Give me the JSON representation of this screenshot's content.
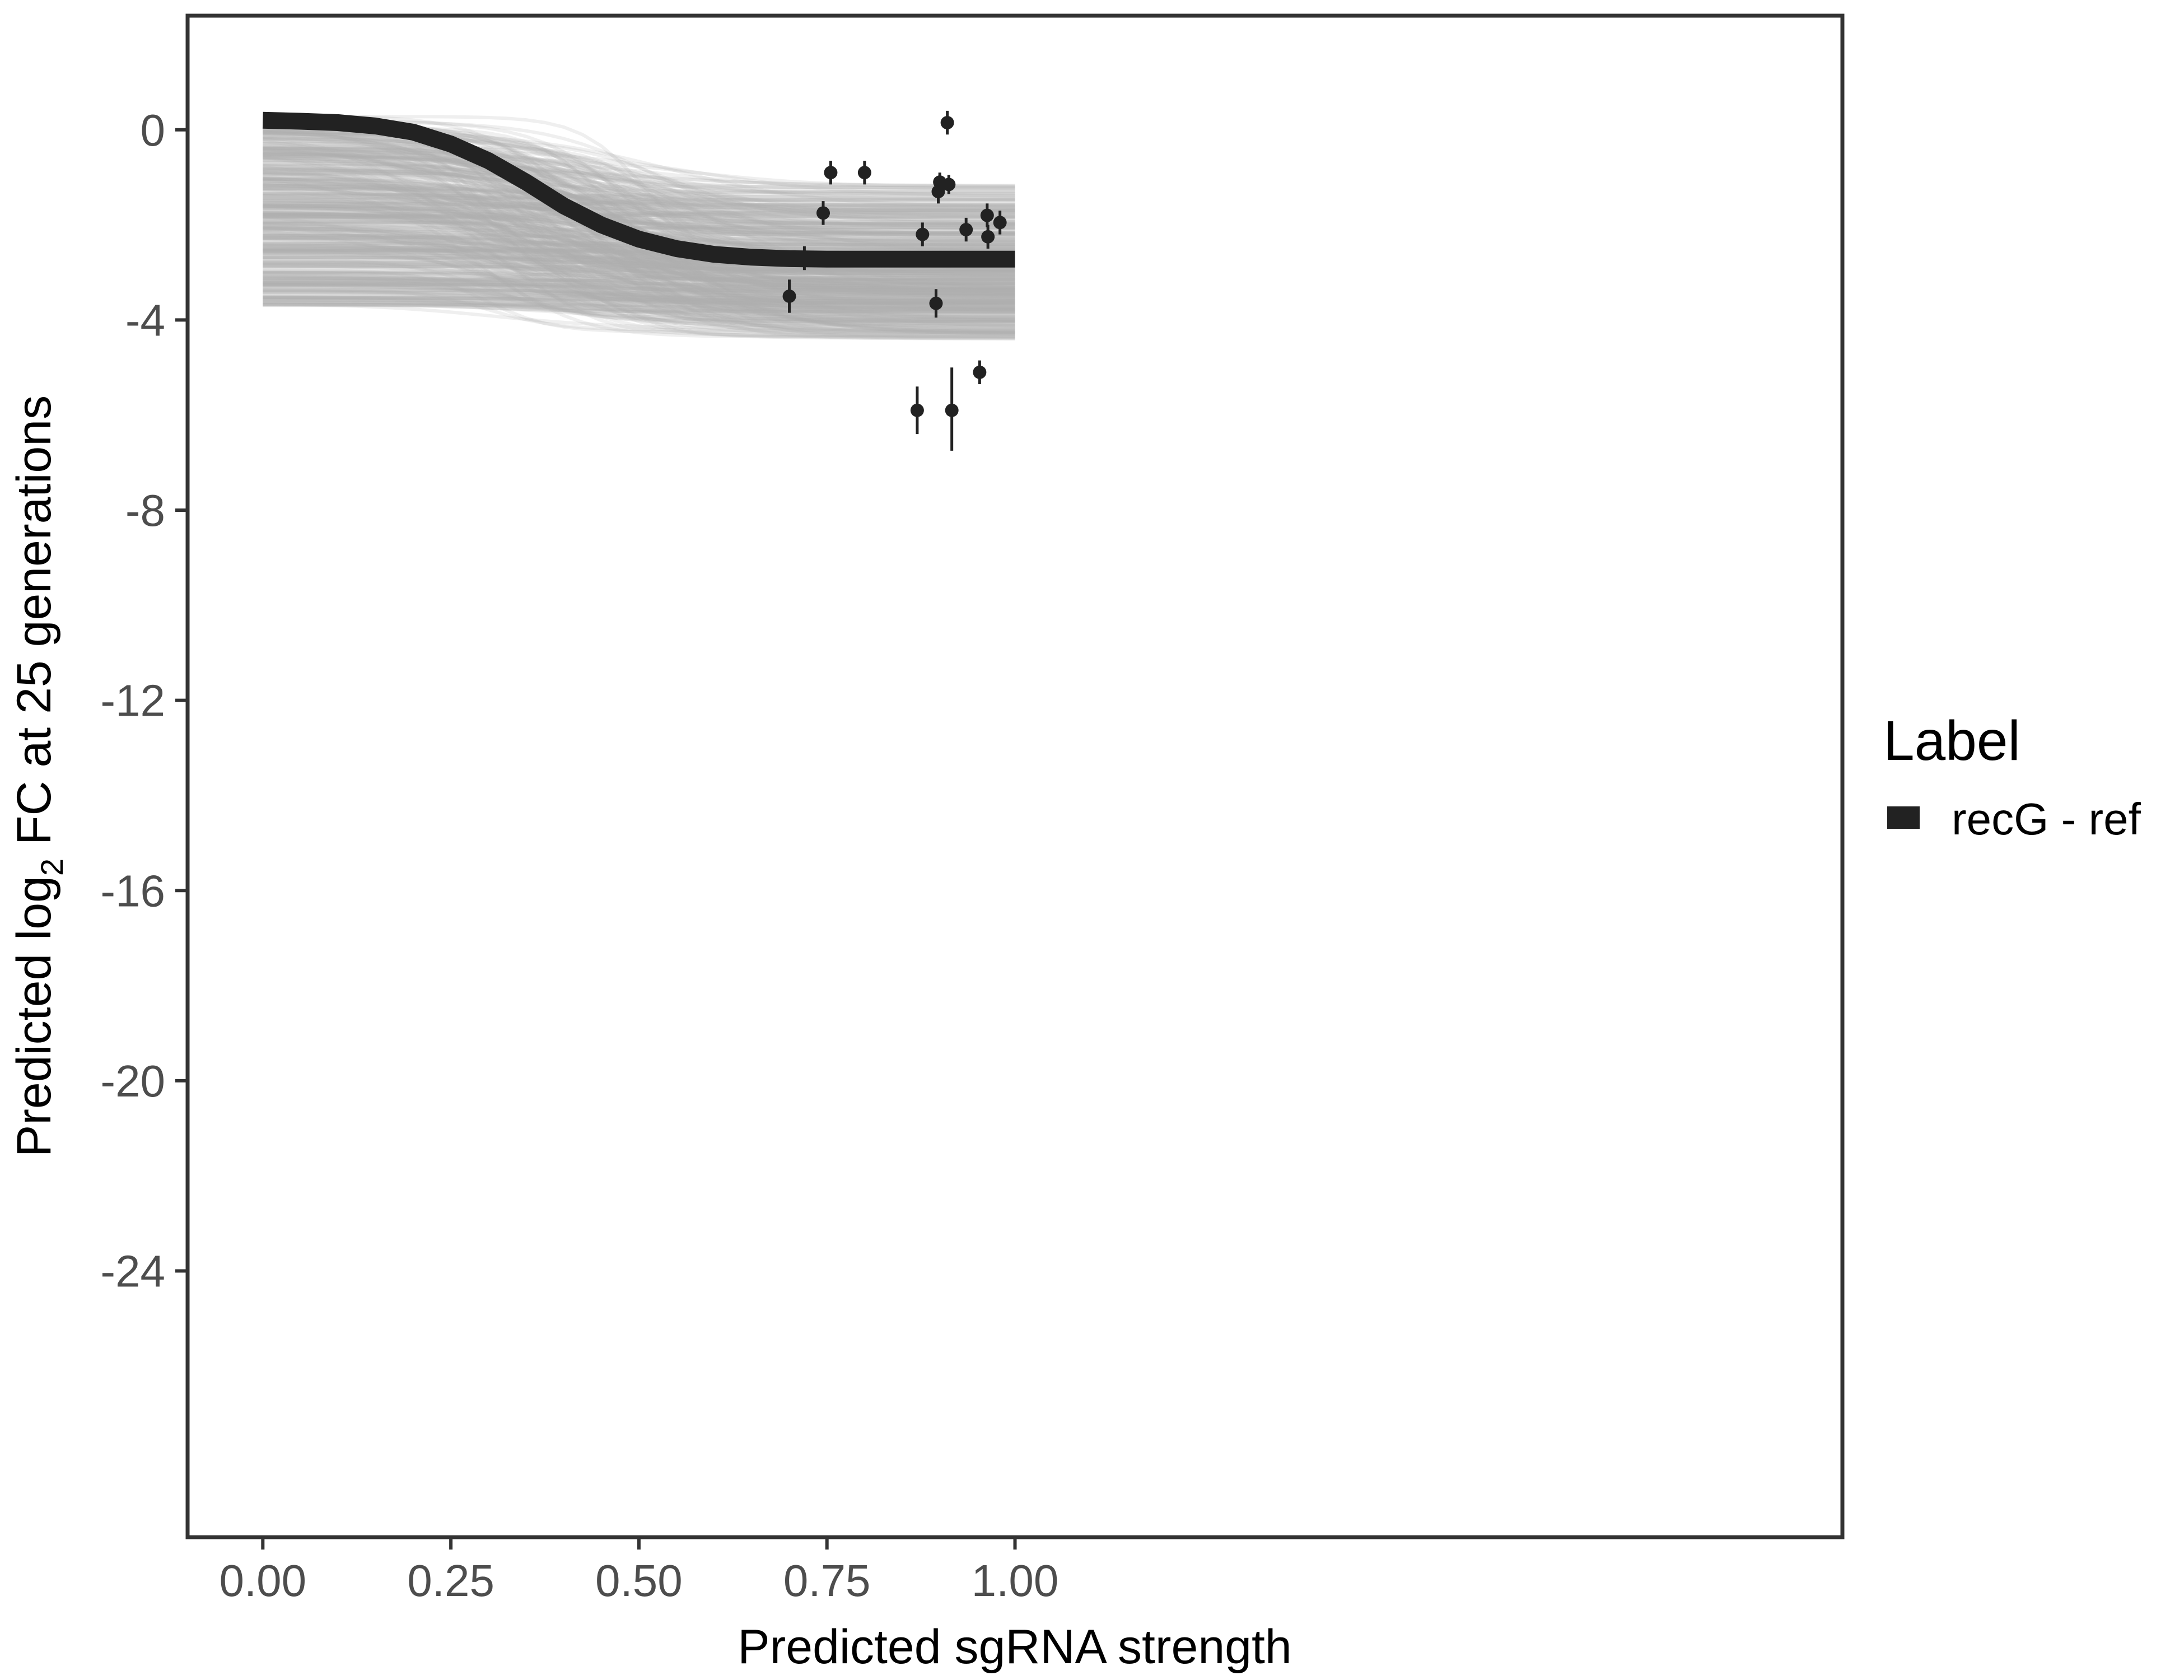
{
  "chart_data": {
    "type": "line",
    "xlabel": "Predicted sgRNA strength",
    "ylabel": {
      "prefix": "Predicted  log",
      "subscript": "2",
      "suffix": " FC at 25 generations"
    },
    "xlim": [
      -0.1,
      2.1
    ],
    "ylim": [
      -29.6,
      2.4
    ],
    "x_ticks": [
      0.0,
      0.25,
      0.5,
      0.75,
      1.0
    ],
    "x_tick_labels": [
      "0.00",
      "0.25",
      "0.50",
      "0.75",
      "1.00"
    ],
    "y_ticks": [
      0,
      -4,
      -8,
      -12,
      -16,
      -20,
      -24
    ],
    "y_tick_labels": [
      "0",
      "-4",
      "-8",
      "-12",
      "-16",
      "-20",
      "-24"
    ],
    "grid": false,
    "legend": {
      "title": "Label",
      "position": "right",
      "entries": [
        {
          "label": "recG - ref",
          "color": "#222222"
        }
      ]
    },
    "main_curve": {
      "name": "recG - ref",
      "color": "#222222",
      "x": [
        0.0,
        0.05,
        0.1,
        0.15,
        0.2,
        0.25,
        0.3,
        0.35,
        0.4,
        0.45,
        0.5,
        0.55,
        0.6,
        0.65,
        0.7,
        0.75,
        0.8,
        0.85,
        0.9,
        0.95,
        1.0
      ],
      "y": [
        0.2,
        0.18,
        0.15,
        0.08,
        -0.05,
        -0.3,
        -0.65,
        -1.1,
        -1.6,
        -2.0,
        -2.3,
        -2.5,
        -2.62,
        -2.68,
        -2.71,
        -2.72,
        -2.72,
        -2.72,
        -2.72,
        -2.72,
        -2.72
      ]
    },
    "posterior_draws": {
      "color": "#b0b0b0",
      "count": 450,
      "y_start_range": [
        -3.7,
        0.3
      ],
      "y_end_range": [
        -4.4,
        -1.1
      ]
    },
    "observations": [
      {
        "x": 0.7,
        "y": -3.5,
        "lo": -3.85,
        "hi": -3.15
      },
      {
        "x": 0.72,
        "y": -2.7,
        "lo": -2.95,
        "hi": -2.45
      },
      {
        "x": 0.745,
        "y": -1.75,
        "lo": -2.0,
        "hi": -1.5
      },
      {
        "x": 0.755,
        "y": -0.9,
        "lo": -1.15,
        "hi": -0.65
      },
      {
        "x": 0.8,
        "y": -0.9,
        "lo": -1.15,
        "hi": -0.65
      },
      {
        "x": 0.87,
        "y": -5.9,
        "lo": -6.4,
        "hi": -5.4
      },
      {
        "x": 0.877,
        "y": -2.2,
        "lo": -2.45,
        "hi": -1.95
      },
      {
        "x": 0.895,
        "y": -3.65,
        "lo": -3.95,
        "hi": -3.35
      },
      {
        "x": 0.898,
        "y": -1.3,
        "lo": -1.55,
        "hi": -1.05
      },
      {
        "x": 0.9,
        "y": -1.1,
        "lo": -1.3,
        "hi": -0.9
      },
      {
        "x": 0.91,
        "y": 0.15,
        "lo": -0.1,
        "hi": 0.4
      },
      {
        "x": 0.912,
        "y": -1.15,
        "lo": -1.35,
        "hi": -0.95
      },
      {
        "x": 0.916,
        "y": -5.9,
        "lo": -6.75,
        "hi": -5.0
      },
      {
        "x": 0.935,
        "y": -2.1,
        "lo": -2.35,
        "hi": -1.85
      },
      {
        "x": 0.953,
        "y": -5.1,
        "lo": -5.35,
        "hi": -4.85
      },
      {
        "x": 0.963,
        "y": -1.8,
        "lo": -2.05,
        "hi": -1.55
      },
      {
        "x": 0.964,
        "y": -2.25,
        "lo": -2.5,
        "hi": -2.0
      },
      {
        "x": 0.98,
        "y": -1.95,
        "lo": -2.2,
        "hi": -1.7
      }
    ]
  }
}
